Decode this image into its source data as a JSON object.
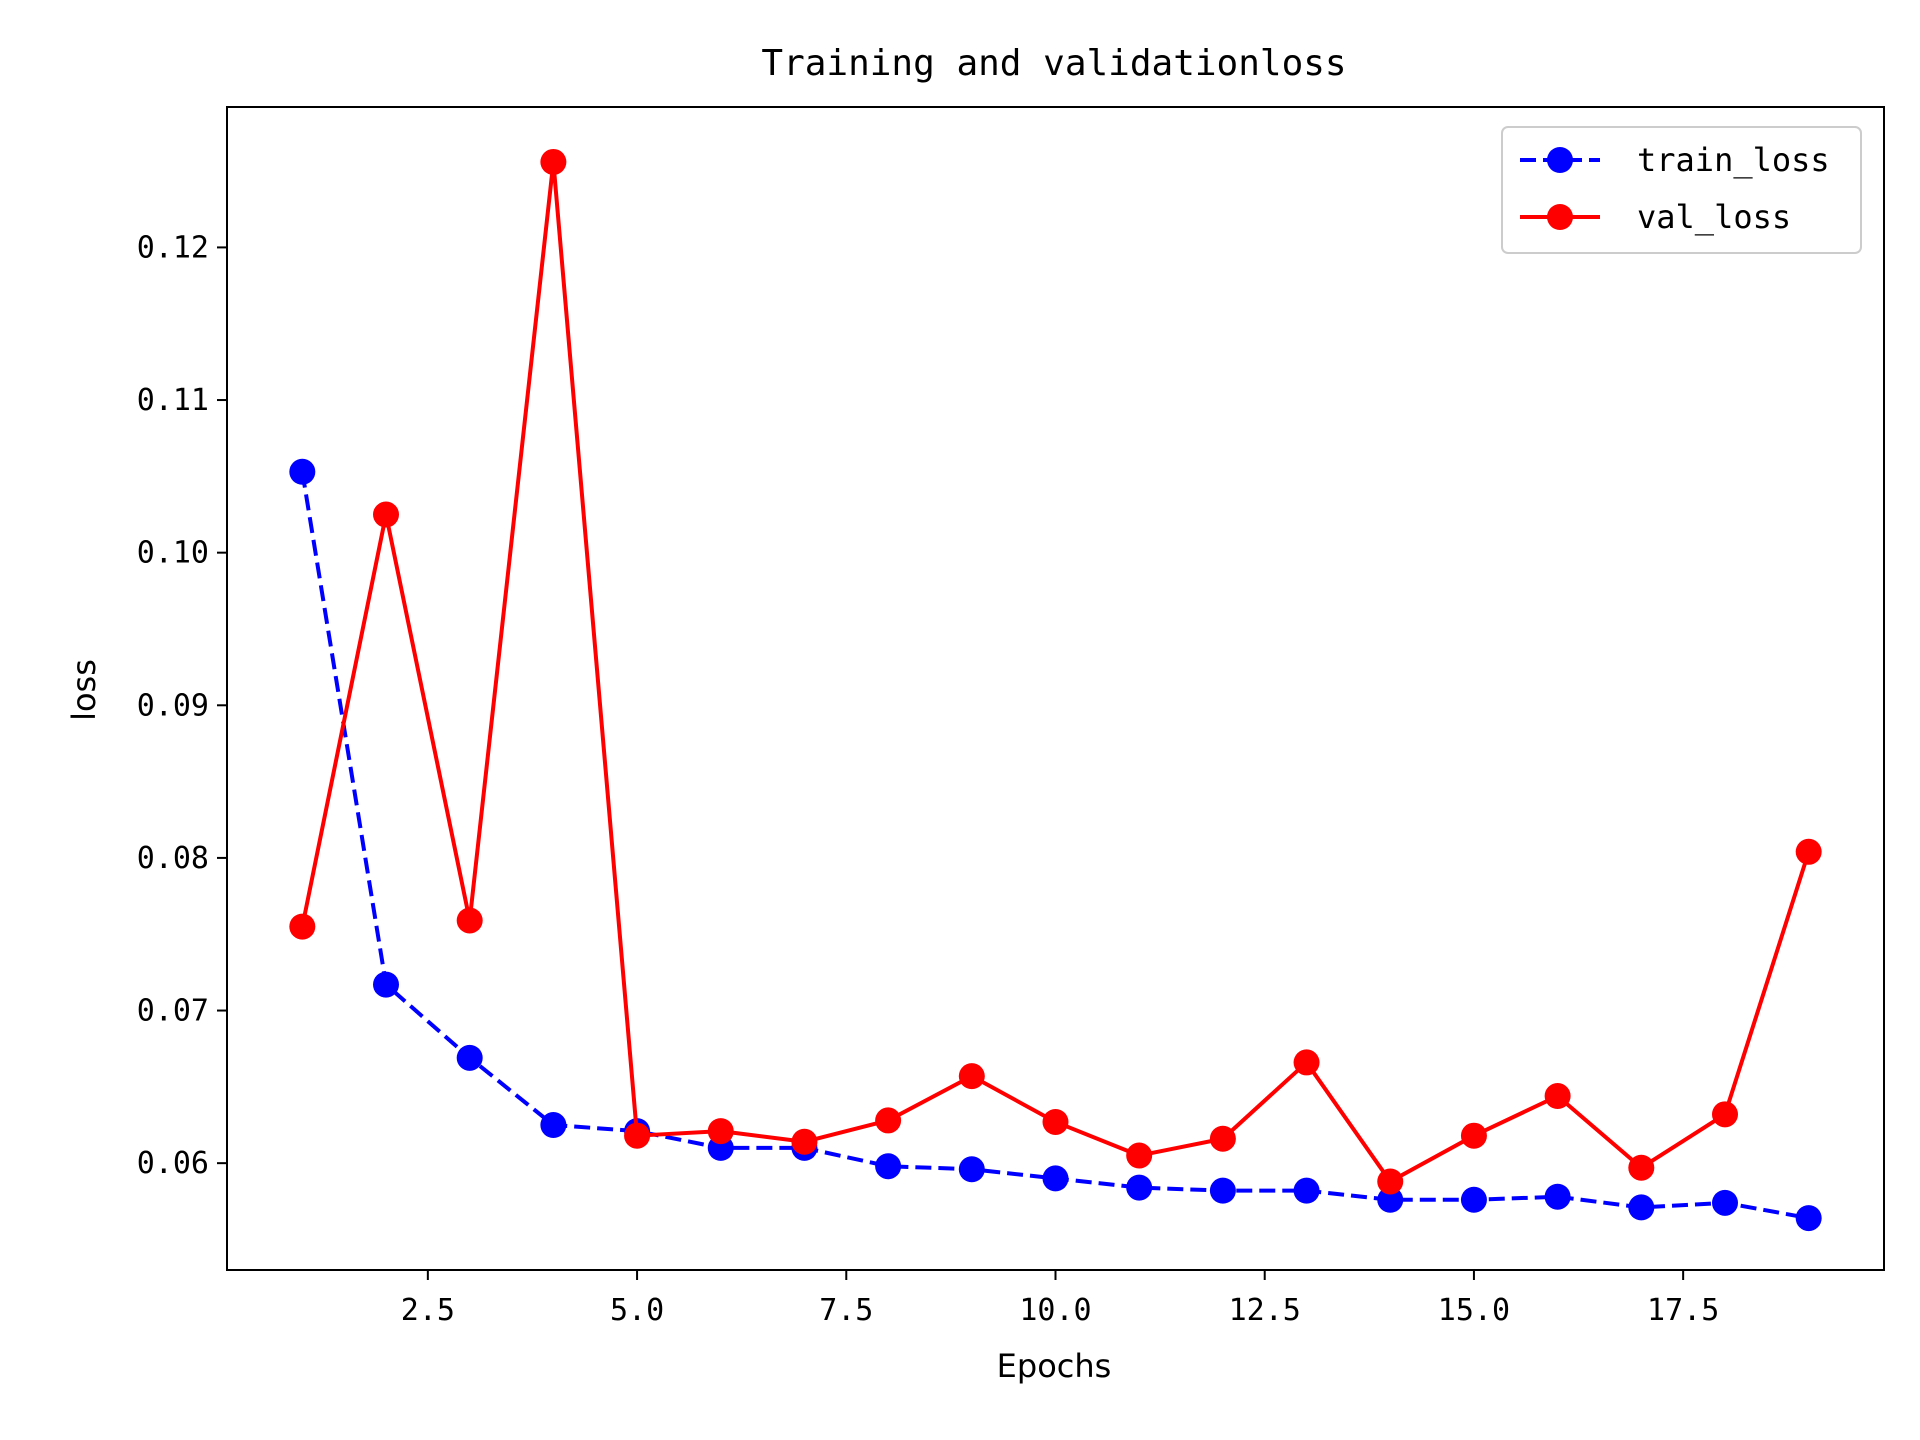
{
  "chart_data": {
    "type": "line",
    "title": "Training and validationloss",
    "xlabel": "Epochs",
    "ylabel": "loss",
    "xlim": [
      0.1,
      19.9
    ],
    "ylim": [
      0.053,
      0.1292
    ],
    "xticks": [
      2.5,
      5.0,
      7.5,
      10.0,
      12.5,
      15.0,
      17.5
    ],
    "xtick_labels": [
      "2.5",
      "5.0",
      "7.5",
      "10.0",
      "12.5",
      "15.0",
      "17.5"
    ],
    "yticks": [
      0.06,
      0.07,
      0.08,
      0.09,
      0.1,
      0.11,
      0.12
    ],
    "ytick_labels": [
      "0.06",
      "0.07",
      "0.08",
      "0.09",
      "0.10",
      "0.11",
      "0.12"
    ],
    "grid": false,
    "legend_position": "top-right",
    "x": [
      1,
      2,
      3,
      4,
      5,
      6,
      7,
      8,
      9,
      10,
      11,
      12,
      13,
      14,
      15,
      16,
      17,
      18,
      19
    ],
    "series": [
      {
        "name": "train_loss",
        "color": "#0000ff",
        "style": "dashed",
        "marker": "circle",
        "values": [
          0.1053,
          0.0717,
          0.0669,
          0.0625,
          0.0621,
          0.061,
          0.061,
          0.0598,
          0.0596,
          0.059,
          0.0584,
          0.0582,
          0.0582,
          0.0576,
          0.0576,
          0.0578,
          0.0571,
          0.0574,
          0.0564
        ]
      },
      {
        "name": "val_loss",
        "color": "#ff0000",
        "style": "solid",
        "marker": "circle",
        "values": [
          0.0755,
          0.1025,
          0.0759,
          0.1256,
          0.0618,
          0.0621,
          0.0614,
          0.0628,
          0.0657,
          0.0627,
          0.0605,
          0.0616,
          0.0666,
          0.0588,
          0.0618,
          0.0644,
          0.0597,
          0.0632,
          0.0804
        ]
      }
    ]
  }
}
